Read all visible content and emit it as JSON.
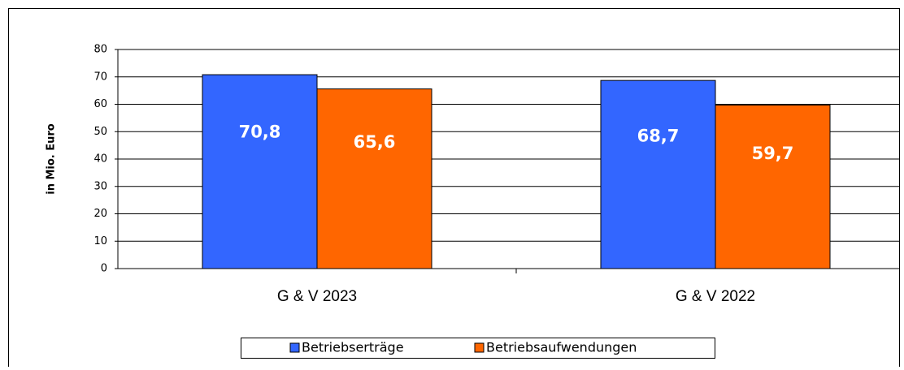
{
  "chart_data": {
    "type": "bar",
    "y_label": "in Mio. Euro",
    "categories": [
      "G & V 2023",
      "G & V 2022"
    ],
    "series": [
      {
        "name": "Betriebserträge",
        "color": "#3366ff",
        "values": [
          70.8,
          68.7
        ],
        "value_labels": [
          "70,8",
          "68,7"
        ]
      },
      {
        "name": "Betriebsaufwendungen",
        "color": "#ff6600",
        "values": [
          65.6,
          59.7
        ],
        "value_labels": [
          "65,6",
          "59,7"
        ]
      }
    ],
    "ylim": [
      0,
      80
    ],
    "yticks": [
      0,
      10,
      20,
      30,
      40,
      50,
      60,
      70,
      80
    ],
    "grid": true,
    "legend": "bottom"
  }
}
